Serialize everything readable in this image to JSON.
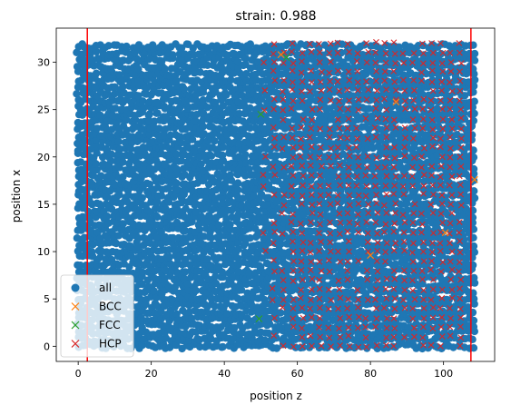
{
  "chart_data": {
    "type": "scatter",
    "title": "strain: 0.988",
    "xlabel": "position z",
    "ylabel": "position x",
    "xlim": [
      -6,
      114
    ],
    "ylim": [
      -1.6,
      33.6
    ],
    "xticks": [
      "0",
      "20",
      "40",
      "60",
      "80",
      "100"
    ],
    "xtick_values": [
      0,
      20,
      40,
      60,
      80,
      100
    ],
    "yticks": [
      "0",
      "5",
      "10",
      "15",
      "20",
      "25",
      "30"
    ],
    "ytick_values": [
      0,
      5,
      10,
      15,
      20,
      25,
      30
    ],
    "grid": false,
    "legend_position": "lower-left",
    "vlines": {
      "x": [
        2.5,
        107.5
      ],
      "color": "#ff0000"
    },
    "series": [
      {
        "name": "all",
        "marker": "circle",
        "color": "#1f77b4",
        "x_range": [
          0,
          108.5
        ],
        "y_range": [
          0,
          32.2
        ]
      },
      {
        "name": "BCC",
        "marker": "x",
        "color": "#ff7f0e",
        "points": [
          [
            55.5,
            30.8
          ],
          [
            87.0,
            25.8
          ],
          [
            100.5,
            12.0
          ],
          [
            108.5,
            17.6
          ],
          [
            80.0,
            9.6
          ]
        ]
      },
      {
        "name": "FCC",
        "marker": "x",
        "color": "#2ca02c",
        "points": [
          [
            50.0,
            24.5
          ],
          [
            49.5,
            2.9
          ],
          [
            57.0,
            30.5
          ]
        ]
      },
      {
        "name": "HCP",
        "marker": "x",
        "color": "#d62728",
        "x_range": [
          51,
          107
        ],
        "y_range": [
          0,
          32.2
        ]
      }
    ]
  }
}
